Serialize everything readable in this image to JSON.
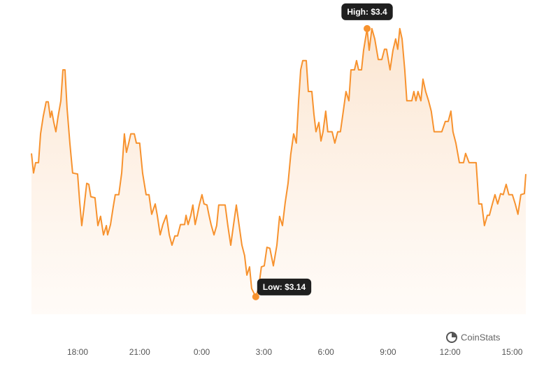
{
  "chart_data": {
    "type": "line",
    "x": [
      15.77,
      15.87,
      15.97,
      16.11,
      16.21,
      16.34,
      16.48,
      16.58,
      16.68,
      16.75,
      16.85,
      16.95,
      17.05,
      17.19,
      17.29,
      17.39,
      17.49,
      17.63,
      17.76,
      18,
      18.1,
      18.2,
      18.3,
      18.44,
      18.54,
      18.64,
      18.84,
      18.98,
      19.11,
      19.25,
      19.39,
      19.45,
      19.59,
      19.72,
      19.82,
      19.99,
      20.13,
      20.26,
      20.36,
      20.47,
      20.57,
      20.74,
      20.84,
      21,
      21.14,
      21.31,
      21.45,
      21.58,
      21.75,
      21.85,
      21.99,
      22.12,
      22.29,
      22.43,
      22.56,
      22.7,
      22.83,
      22.97,
      23.17,
      23.24,
      23.34,
      23.47,
      23.57,
      23.68,
      23.78,
      23.88,
      24.01,
      24.11,
      24.25,
      24.35,
      24.45,
      24.59,
      24.72,
      24.82,
      25.13,
      25.26,
      25.4,
      25.53,
      25.67,
      25.8,
      25.94,
      26.07,
      26.18,
      26.31,
      26.41,
      26.61,
      26.75,
      26.88,
      27.02,
      27.15,
      27.29,
      27.46,
      27.63,
      27.76,
      27.9,
      28.03,
      28.17,
      28.3,
      28.44,
      28.57,
      28.68,
      28.78,
      28.88,
      29.05,
      29.15,
      29.32,
      29.42,
      29.52,
      29.66,
      29.76,
      29.86,
      29.99,
      30.09,
      30.3,
      30.43,
      30.57,
      30.7,
      30.84,
      30.97,
      31.11,
      31.21,
      31.38,
      31.48,
      31.58,
      31.72,
      31.82,
      31.99,
      32.09,
      32.22,
      32.36,
      32.53,
      32.7,
      32.83,
      32.93,
      33.1,
      33.24,
      33.37,
      33.47,
      33.57,
      33.68,
      33.81,
      33.91,
      34.15,
      34.25,
      34.35,
      34.45,
      34.59,
      34.69,
      34.82,
      34.96,
      35.09,
      35.23,
      35.6,
      35.77,
      35.91,
      36.04,
      36.14,
      36.28,
      36.45,
      36.65,
      36.75,
      36.92,
      37.26,
      37.39,
      37.53,
      37.66,
      37.8,
      37.9,
      38.03,
      38.17,
      38.3,
      38.44,
      38.57,
      38.71,
      38.84,
      39.01,
      39.15,
      39.28,
      39.42,
      39.59,
      39.66
    ],
    "series": [
      {
        "color": "#f7922e",
        "values": [
          3.279,
          3.26,
          3.27,
          3.27,
          3.298,
          3.315,
          3.329,
          3.329,
          3.314,
          3.32,
          3.309,
          3.3,
          3.314,
          3.33,
          3.36,
          3.36,
          3.323,
          3.288,
          3.26,
          3.259,
          3.232,
          3.209,
          3.225,
          3.25,
          3.249,
          3.237,
          3.236,
          3.209,
          3.218,
          3.2,
          3.209,
          3.2,
          3.21,
          3.227,
          3.239,
          3.239,
          3.26,
          3.298,
          3.28,
          3.289,
          3.298,
          3.298,
          3.289,
          3.289,
          3.26,
          3.239,
          3.239,
          3.22,
          3.23,
          3.219,
          3.2,
          3.21,
          3.219,
          3.2,
          3.19,
          3.199,
          3.199,
          3.21,
          3.21,
          3.219,
          3.21,
          3.219,
          3.229,
          3.21,
          3.219,
          3.229,
          3.239,
          3.23,
          3.229,
          3.219,
          3.21,
          3.2,
          3.209,
          3.229,
          3.229,
          3.209,
          3.19,
          3.209,
          3.229,
          3.21,
          3.19,
          3.18,
          3.161,
          3.169,
          3.148,
          3.14,
          3.149,
          3.169,
          3.17,
          3.188,
          3.187,
          3.17,
          3.19,
          3.218,
          3.209,
          3.231,
          3.25,
          3.278,
          3.298,
          3.289,
          3.33,
          3.36,
          3.369,
          3.369,
          3.339,
          3.339,
          3.317,
          3.3,
          3.309,
          3.291,
          3.3,
          3.32,
          3.3,
          3.3,
          3.289,
          3.3,
          3.3,
          3.32,
          3.339,
          3.33,
          3.36,
          3.36,
          3.369,
          3.36,
          3.36,
          3.379,
          3.4,
          3.379,
          3.4,
          3.39,
          3.37,
          3.37,
          3.38,
          3.38,
          3.36,
          3.379,
          3.39,
          3.38,
          3.4,
          3.39,
          3.36,
          3.33,
          3.33,
          3.339,
          3.33,
          3.339,
          3.33,
          3.351,
          3.339,
          3.33,
          3.32,
          3.3,
          3.3,
          3.31,
          3.31,
          3.32,
          3.3,
          3.289,
          3.27,
          3.27,
          3.279,
          3.27,
          3.27,
          3.23,
          3.23,
          3.209,
          3.219,
          3.219,
          3.229,
          3.239,
          3.23,
          3.24,
          3.239,
          3.249,
          3.239,
          3.239,
          3.23,
          3.22,
          3.239,
          3.24,
          3.259
        ]
      }
    ],
    "xlim": [
      15.77,
      39.66
    ],
    "ylim": [
      3.11,
      3.42
    ],
    "xticks": [
      {
        "value": 18,
        "label": "18:00"
      },
      {
        "value": 21,
        "label": "21:00"
      },
      {
        "value": 24,
        "label": "0:00"
      },
      {
        "value": 27,
        "label": "3:00"
      },
      {
        "value": 30,
        "label": "6:00"
      },
      {
        "value": 33,
        "label": "9:00"
      },
      {
        "value": 36,
        "label": "12:00"
      },
      {
        "value": 39,
        "label": "15:00"
      }
    ],
    "annotations": [
      {
        "text": "High: $3.4",
        "x": 31.99,
        "y": 3.4
      },
      {
        "text": "Low: $3.14",
        "x": 26.61,
        "y": 3.14
      }
    ],
    "watermark": "CoinStats"
  }
}
